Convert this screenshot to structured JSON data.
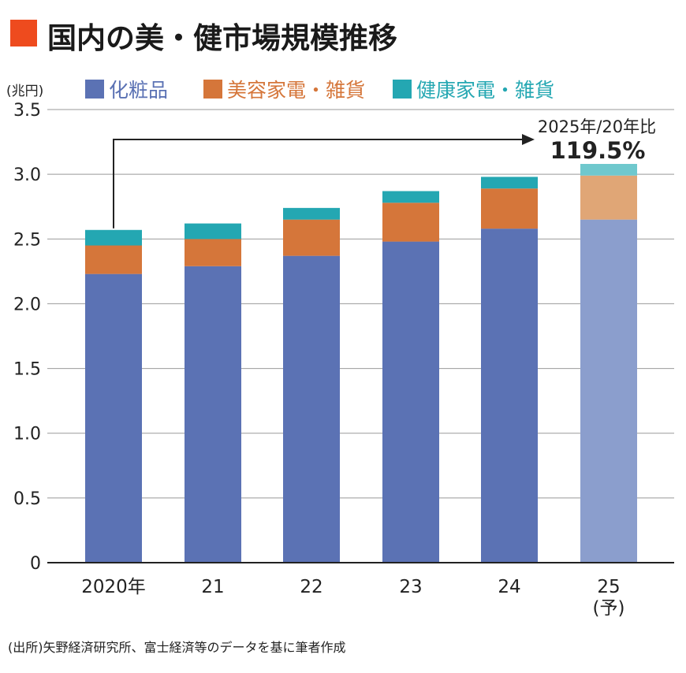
{
  "title": "国内の美・健市場規模推移",
  "colors": {
    "title_box": "#ee4b1e",
    "cosmetics": "#5b72b4",
    "beauty_appliances": "#d5763a",
    "health_appliances": "#24a7b2",
    "cosmetics_forecast": "#8b9ecd",
    "beauty_appliances_forecast": "#e0a676",
    "health_appliances_forecast": "#6fc8cd",
    "grid": "#999999",
    "arrow": "#222222"
  },
  "chart_data": {
    "type": "bar",
    "stacked": true,
    "unit_label": "(兆円)",
    "categories": [
      "2020年",
      "21",
      "22",
      "23",
      "24",
      "25"
    ],
    "category_notes": [
      "",
      "",
      "",
      "",
      "",
      "(予)"
    ],
    "series": [
      {
        "name": "化粧品",
        "values": [
          2.23,
          2.29,
          2.37,
          2.48,
          2.58,
          2.65
        ]
      },
      {
        "name": "美容家電・雑貨",
        "values": [
          0.22,
          0.21,
          0.28,
          0.3,
          0.31,
          0.34
        ]
      },
      {
        "name": "健康家電・雑貨",
        "values": [
          0.12,
          0.12,
          0.09,
          0.09,
          0.09,
          0.09
        ]
      }
    ],
    "forecast_index": 5,
    "ylim": [
      0,
      3.5
    ],
    "yticks": [
      "0",
      "0.5",
      "1.0",
      "1.5",
      "2.0",
      "2.5",
      "3.0",
      "3.5"
    ],
    "ytick_values": [
      0,
      0.5,
      1.0,
      1.5,
      2.0,
      2.5,
      3.0,
      3.5
    ],
    "grid": true,
    "legend_position": "top",
    "annotation": {
      "line1": "2025年/20年比",
      "line2": "119.5%",
      "from_index": 0,
      "to_index": 5
    }
  },
  "source": "(出所)矢野経済研究所、富士経済等のデータを基に筆者作成"
}
